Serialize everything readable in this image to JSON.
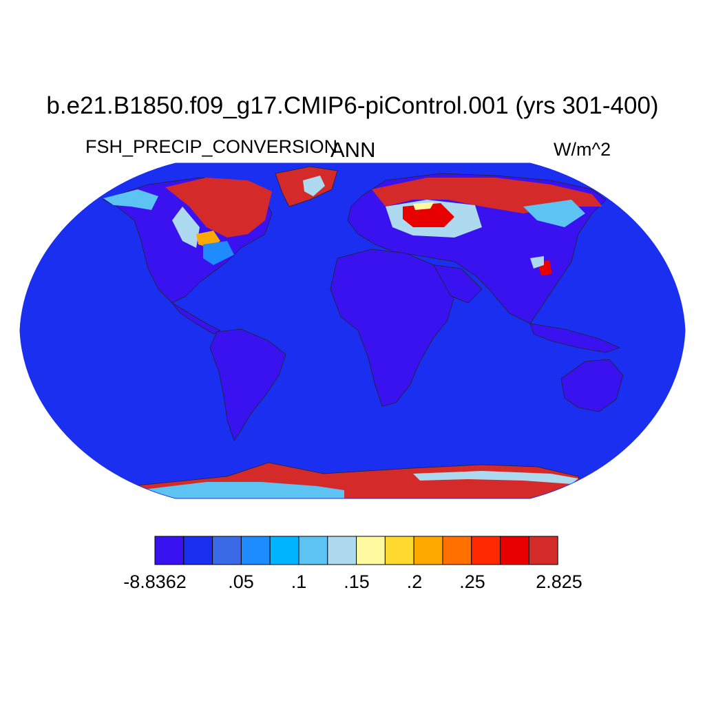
{
  "title": "b.e21.B1850.f09_g17.CMIP6-piControl.001 (yrs 301-400)",
  "left_label": "FSH_PRECIP_CONVERSION",
  "center_label": "ANN",
  "right_label": "W/m^2",
  "colorbar": {
    "colors": [
      "#3a12f0",
      "#1a2ff0",
      "#3a6ae6",
      "#1e8cff",
      "#00b4ff",
      "#5cc3f2",
      "#aedaf0",
      "#fffaa0",
      "#ffd830",
      "#ffa800",
      "#ff7000",
      "#ff2800",
      "#e80000",
      "#d42a2a"
    ],
    "tick_labels": [
      "-8.8362",
      ".05",
      ".1",
      ".15",
      ".2",
      ".25",
      "2.825"
    ]
  },
  "map": {
    "projection": "Robinson",
    "ocean_color": "#1a2ff0",
    "land_background": "#3a12f0",
    "high_value_color": "#d42a2a"
  }
}
